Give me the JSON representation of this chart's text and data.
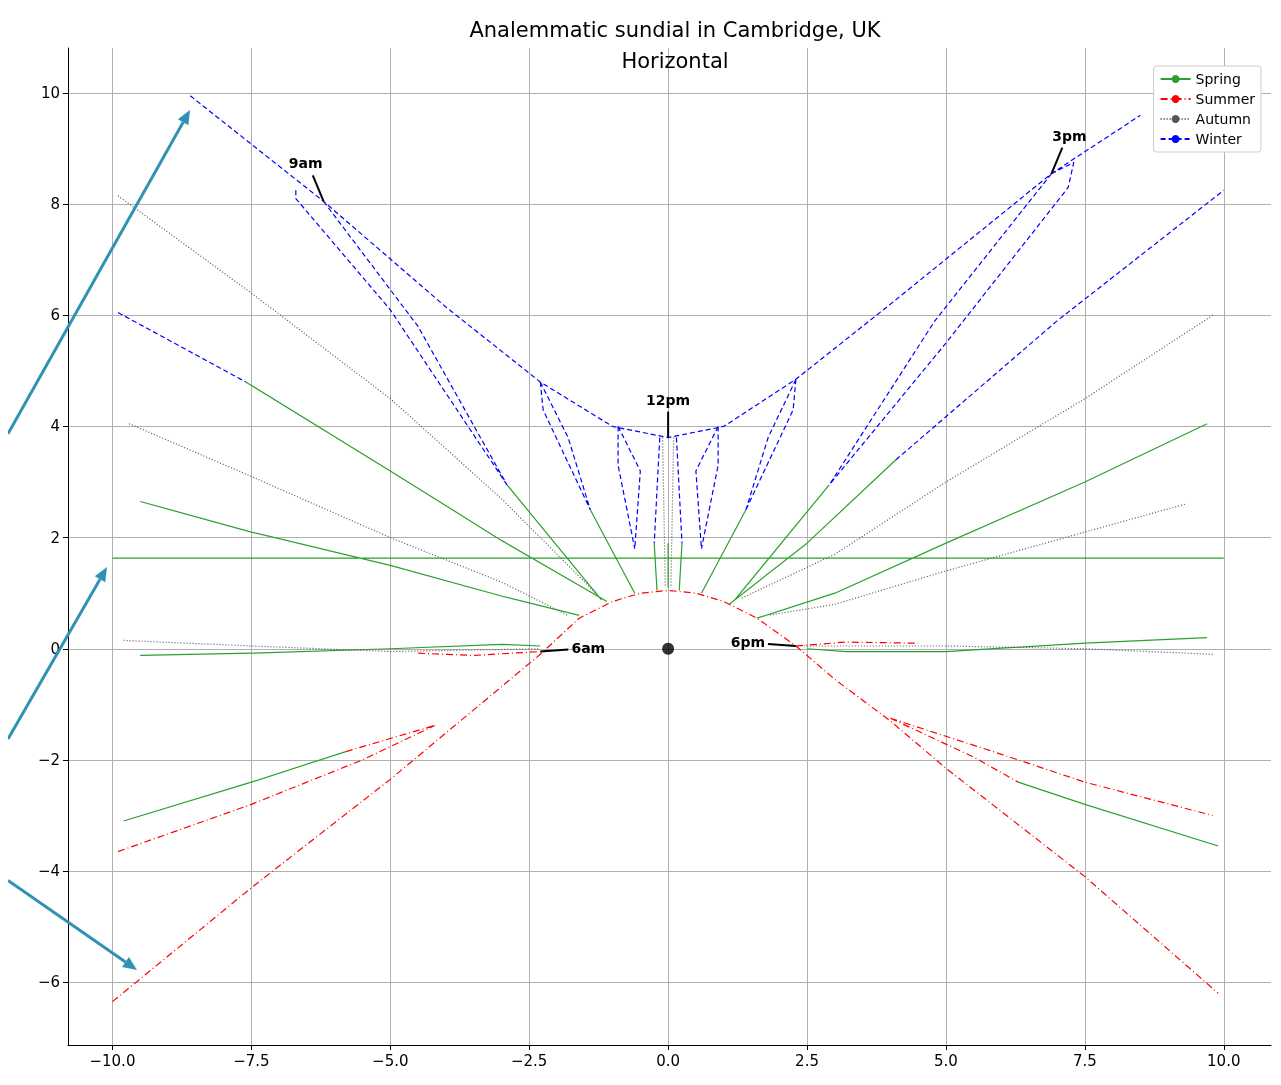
{
  "chart_data": {
    "type": "line",
    "title": "Analemmatic sundial in Cambridge, UK",
    "subtitle": "Horizontal",
    "xlim": [
      -10.8,
      10.85
    ],
    "ylim": [
      -7.13,
      10.81
    ],
    "xticks": [
      {
        "value": -10,
        "label": "−10.0"
      },
      {
        "value": -7.5,
        "label": "−7.5"
      },
      {
        "value": -5,
        "label": "−5.0"
      },
      {
        "value": -2.5,
        "label": "−2.5"
      },
      {
        "value": 0,
        "label": "0.0"
      },
      {
        "value": 2.5,
        "label": "2.5"
      },
      {
        "value": 5,
        "label": "5.0"
      },
      {
        "value": 7.5,
        "label": "7.5"
      },
      {
        "value": 10,
        "label": "10.0"
      }
    ],
    "yticks": [
      {
        "value": -6,
        "label": "−6"
      },
      {
        "value": -4,
        "label": "−4"
      },
      {
        "value": -2,
        "label": "−2"
      },
      0,
      2,
      4,
      6,
      8,
      10
    ],
    "grid": true,
    "legend": "top right",
    "annotations": [
      {
        "text": "9am",
        "x": -6.2,
        "y": 8.05
      },
      {
        "text": "3pm",
        "x": 6.9,
        "y": 8.55
      },
      {
        "text": "12pm",
        "x": 0,
        "y": 3.8
      },
      {
        "text": "6am",
        "x": -2.3,
        "y": -0.05
      },
      {
        "text": "6pm",
        "x": 2.3,
        "y": 0.05
      }
    ],
    "series": [
      {
        "name": "Spring",
        "color": "#2ca02c",
        "line_style": "solid",
        "x": [
          -7.6,
          -5,
          -3,
          -1.1,
          null,
          -9.5,
          -7.5,
          -5,
          -3,
          -1.6,
          null,
          -9.5,
          -7.5,
          -5,
          -3,
          -2.3,
          null,
          -9.8,
          -7.5,
          -5.8,
          null,
          -10,
          10,
          null,
          -2.9,
          -1.2,
          null,
          -1.4,
          -0.6,
          null,
          -0.25,
          -0.2,
          null,
          0,
          0,
          null,
          0.25,
          0.2,
          null,
          1.4,
          0.6,
          null,
          2.9,
          1.2,
          null,
          4.1,
          2.5,
          1.1,
          null,
          9.7,
          7.5,
          5,
          3,
          1.6,
          null,
          9.7,
          7.5,
          5,
          3.2,
          2.5,
          null,
          9.9,
          7.5,
          6.3
        ],
        "values": [
          4.8,
          3.2,
          1.95,
          0.85,
          null,
          2.65,
          2.1,
          1.5,
          0.95,
          0.6,
          null,
          -0.12,
          -0.08,
          0,
          0.08,
          0.05,
          null,
          -3.1,
          -2.4,
          -1.85,
          null,
          1.63,
          1.63,
          null,
          2.95,
          0.88,
          null,
          2.5,
          1.0,
          null,
          1.9,
          1.05,
          null,
          1.9,
          1.1,
          null,
          1.9,
          1.05,
          null,
          2.5,
          1.0,
          null,
          2.95,
          0.88,
          null,
          3.4,
          1.9,
          0.8,
          null,
          4.05,
          3.0,
          1.9,
          1.0,
          0.55,
          null,
          0.2,
          0.1,
          -0.05,
          -0.05,
          0,
          null,
          -3.55,
          -2.8,
          -2.4
        ]
      },
      {
        "name": "Summer",
        "color": "#ff0000",
        "line_style": "dashdot",
        "x": [
          -10,
          -7.5,
          -5,
          -3.5,
          -2.3,
          -1.6,
          -1,
          -0.5,
          0,
          0.5,
          1,
          1.6,
          2.3,
          3,
          4,
          5,
          7.5,
          9.9,
          null,
          -9.9,
          -7.5,
          -5.5,
          -4.2,
          null,
          -5.8,
          -4.2,
          null,
          -4.5,
          -3.5,
          -2.3,
          null,
          2.3,
          3.2,
          4.5,
          null,
          4,
          6,
          7.5,
          9.8,
          null,
          4,
          5.5,
          6.3
        ],
        "values": [
          -6.35,
          -4.3,
          -2.35,
          -1.1,
          -0.1,
          0.55,
          0.85,
          1.0,
          1.05,
          1.0,
          0.85,
          0.55,
          0.05,
          -0.55,
          -1.3,
          -2.15,
          -4.1,
          -6.2,
          null,
          -3.65,
          -2.8,
          -2.0,
          -1.38,
          null,
          -1.85,
          -1.38,
          null,
          -0.08,
          -0.12,
          -0.05,
          null,
          0.05,
          0.12,
          0.1,
          null,
          -1.25,
          -1.9,
          -2.4,
          -3.0,
          null,
          -1.25,
          -1.95,
          -2.4
        ]
      },
      {
        "name": "Autumn",
        "color": "#555555",
        "line_style": "dotted",
        "x": [
          -9.9,
          -7.5,
          -5,
          -3,
          -1.3,
          null,
          -9.7,
          -7.5,
          -5,
          -3,
          -1.8,
          null,
          -9.8,
          -7.5,
          -5,
          -2.3,
          null,
          -0.1,
          -0.05,
          null,
          0.1,
          0.05,
          null,
          9.8,
          7.5,
          5,
          3,
          1.3,
          null,
          9.3,
          7.5,
          5,
          3,
          1.8,
          null,
          9.8,
          7.5,
          5,
          2.3
        ],
        "values": [
          8.15,
          6.4,
          4.5,
          2.7,
          1.0,
          null,
          4.05,
          3.1,
          2.0,
          1.2,
          0.6,
          null,
          0.15,
          0.05,
          -0.05,
          0,
          null,
          3.8,
          1.1,
          null,
          3.8,
          1.1,
          null,
          6.0,
          4.5,
          3.0,
          1.7,
          0.9,
          null,
          2.6,
          2.1,
          1.4,
          0.8,
          0.6,
          null,
          -0.1,
          0,
          0.05,
          0.05
        ]
      },
      {
        "name": "Winter",
        "color": "#0000ff",
        "line_style": "dashed",
        "x": [
          -8.6,
          -6.2,
          -4,
          -2.3,
          -1,
          0,
          1,
          2.3,
          4,
          6.9,
          8.5,
          null,
          -6.7,
          -6.7,
          -5,
          -2.9,
          null,
          -6.2,
          -4.5,
          -2.9,
          null,
          -2.3,
          -2.25,
          -1.4,
          null,
          -2.3,
          -1.8,
          -1.4,
          null,
          -0.9,
          -0.9,
          -0.6,
          null,
          -0.9,
          -0.5,
          -0.6,
          null,
          -0.15,
          -0.25,
          null,
          0.15,
          0.25,
          null,
          0.9,
          0.9,
          0.6,
          null,
          0.9,
          0.5,
          0.6,
          null,
          2.3,
          2.25,
          1.4,
          null,
          2.3,
          1.8,
          1.4,
          null,
          6.9,
          7.3,
          7.2,
          5,
          2.9,
          null,
          6.9,
          4.8,
          2.9,
          null,
          -9.9,
          -7.6,
          null,
          4.1,
          7,
          10
        ],
        "values": [
          9.95,
          8.05,
          6.15,
          4.8,
          4.0,
          3.8,
          4.0,
          4.85,
          6.2,
          8.55,
          9.6,
          null,
          8.25,
          8.1,
          6.1,
          2.95,
          null,
          8.05,
          5.8,
          2.95,
          null,
          4.8,
          4.3,
          2.5,
          null,
          4.8,
          3.8,
          2.5,
          null,
          4.0,
          3.3,
          1.8,
          null,
          4.0,
          3.2,
          1.8,
          null,
          3.8,
          1.9,
          null,
          3.8,
          1.9,
          null,
          4.0,
          3.3,
          1.8,
          null,
          4.0,
          3.2,
          1.8,
          null,
          4.85,
          4.3,
          2.5,
          null,
          4.85,
          3.8,
          2.5,
          null,
          8.55,
          8.75,
          8.3,
          5.5,
          2.95,
          null,
          8.55,
          5.9,
          2.95,
          null,
          6.05,
          4.8,
          null,
          3.4,
          5.9,
          8.25
        ]
      },
      {
        "type": "scatter",
        "color": "#000000",
        "marker": "circle",
        "x": [
          0
        ],
        "values": [
          0
        ]
      }
    ]
  }
}
